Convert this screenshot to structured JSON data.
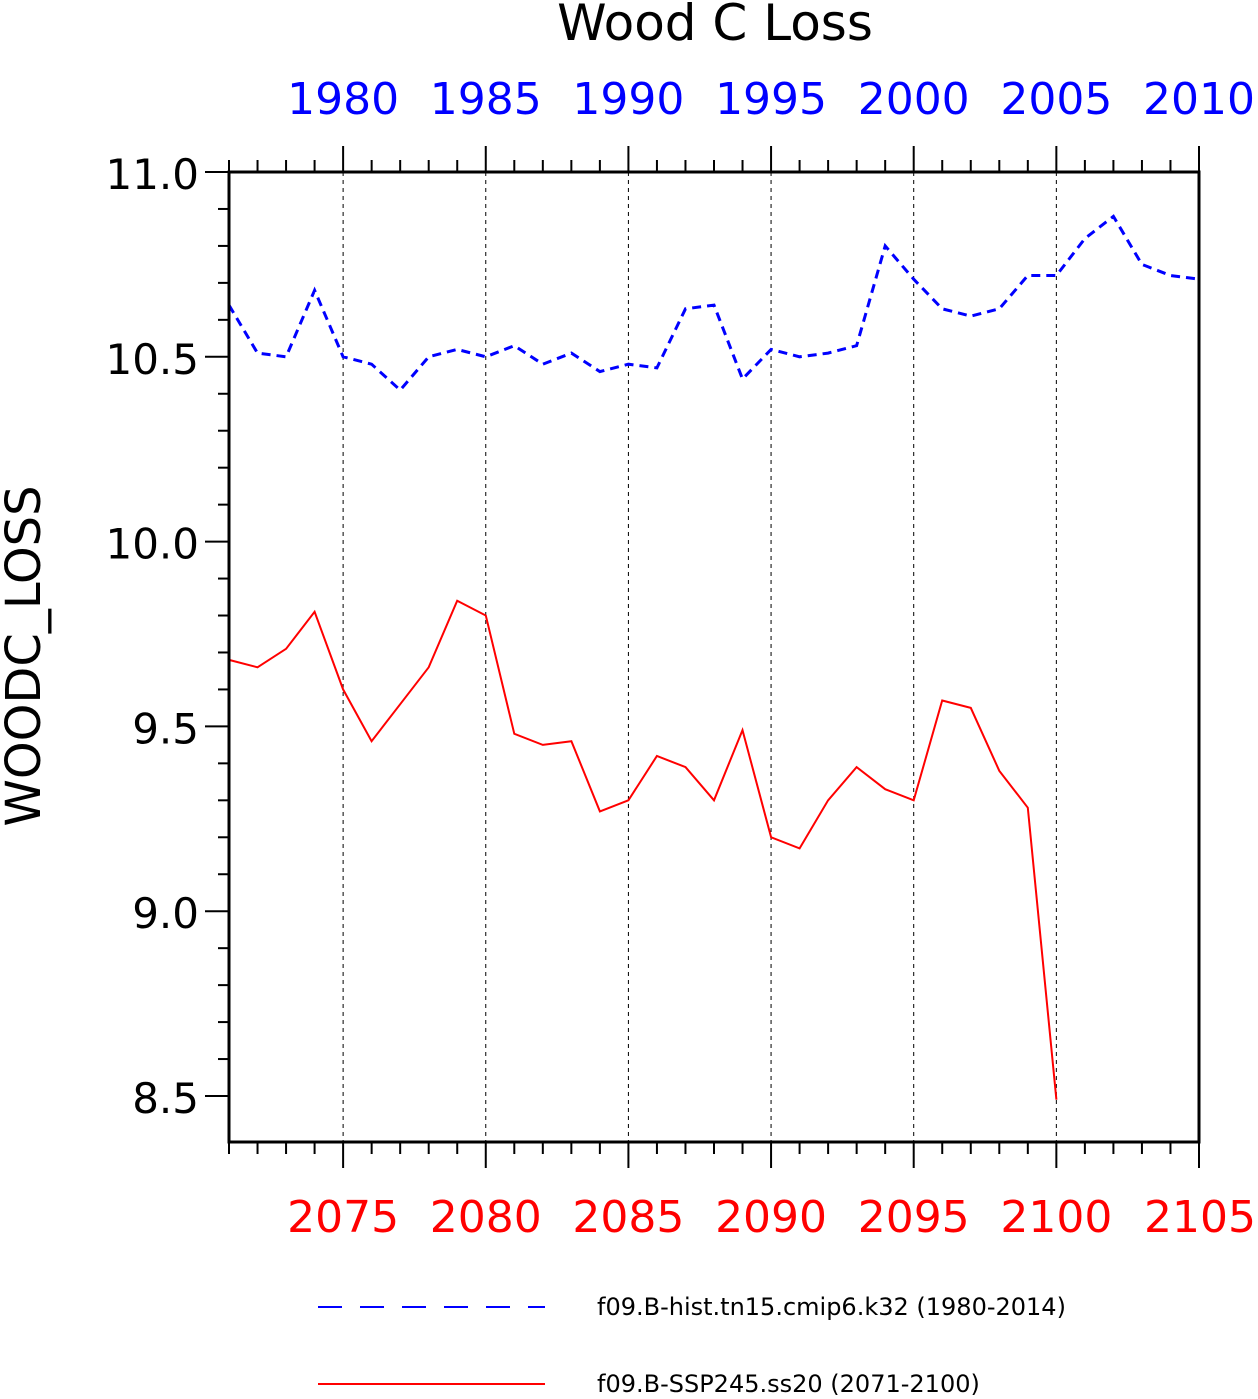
{
  "chart_data": {
    "type": "line",
    "title": "Wood C Loss",
    "ylabel": "WOODC_LOSS",
    "ylim": [
      8.5,
      11.0
    ],
    "y_ticks": [
      "8.5",
      "9.0",
      "9.5",
      "10.0",
      "10.5",
      "11.0"
    ],
    "grid": "vertical dashed lines at major bottom-axis ticks",
    "legend_position": "bottom",
    "colors": {
      "hist": "#0000ff",
      "ssp": "#ff0000",
      "axes": "#000000"
    },
    "top_axis": {
      "xlim": [
        1976,
        2010
      ],
      "tick_labels": [
        "1980",
        "1985",
        "1990",
        "1995",
        "2000",
        "2005",
        "2010"
      ]
    },
    "bottom_axis": {
      "xlim": [
        2071,
        2105
      ],
      "tick_labels": [
        "2075",
        "2080",
        "2085",
        "2090",
        "2095",
        "2100",
        "2105"
      ]
    },
    "series": [
      {
        "name": "f09.B-hist.tn15.cmip6.k32 (1980-2014)",
        "axis": "top",
        "style": "dashed",
        "x": [
          1976,
          1977,
          1978,
          1979,
          1980,
          1981,
          1982,
          1983,
          1984,
          1985,
          1986,
          1987,
          1988,
          1989,
          1990,
          1991,
          1992,
          1993,
          1994,
          1995,
          1996,
          1997,
          1998,
          1999,
          2000,
          2001,
          2002,
          2003,
          2004,
          2005,
          2006,
          2007,
          2008,
          2009,
          2010
        ],
        "values": [
          10.64,
          10.51,
          10.5,
          10.68,
          10.5,
          10.48,
          10.41,
          10.5,
          10.52,
          10.5,
          10.53,
          10.48,
          10.51,
          10.46,
          10.48,
          10.47,
          10.63,
          10.64,
          10.44,
          10.52,
          10.5,
          10.51,
          10.53,
          10.8,
          10.71,
          10.63,
          10.61,
          10.63,
          10.72,
          10.72,
          10.82,
          10.88,
          10.75,
          10.72,
          10.71
        ]
      },
      {
        "name": "f09.B-SSP245.ss20 (2071-2100)",
        "axis": "bottom",
        "style": "solid",
        "x": [
          2071,
          2072,
          2073,
          2074,
          2075,
          2076,
          2077,
          2078,
          2079,
          2080,
          2081,
          2082,
          2083,
          2084,
          2085,
          2086,
          2087,
          2088,
          2089,
          2090,
          2091,
          2092,
          2093,
          2094,
          2095,
          2096,
          2097,
          2098,
          2099,
          2100
        ],
        "values": [
          9.68,
          9.66,
          9.71,
          9.81,
          9.6,
          9.46,
          9.56,
          9.66,
          9.84,
          9.8,
          9.48,
          9.45,
          9.46,
          9.27,
          9.3,
          9.42,
          9.39,
          9.3,
          9.49,
          9.2,
          9.17,
          9.3,
          9.39,
          9.33,
          9.3,
          9.57,
          9.55,
          9.38,
          9.28,
          8.49
        ]
      }
    ]
  }
}
